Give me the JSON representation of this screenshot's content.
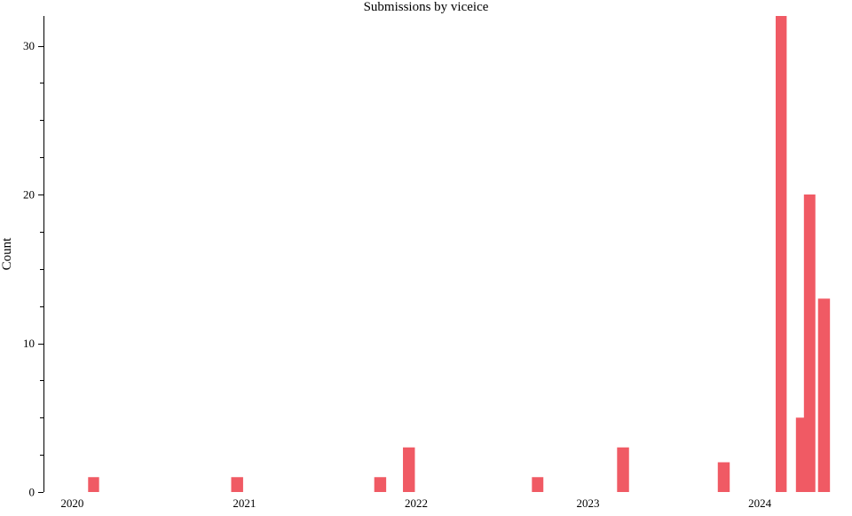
{
  "chart_data": {
    "type": "bar",
    "title": "Submissions by viceice",
    "xlabel": "",
    "ylabel": "Count",
    "x_unit": "date",
    "x_range": [
      "2019-11-01",
      "2024-07-15"
    ],
    "ylim": [
      0,
      32
    ],
    "y_ticks": [
      0,
      10,
      20,
      30
    ],
    "x_ticks": [
      "2020",
      "2021",
      "2022",
      "2023",
      "2024"
    ],
    "grid": false,
    "legend": "none",
    "bar_color": "#f05a64",
    "bars": [
      {
        "start": "2020-02-01",
        "end": "2020-03-01",
        "value": 1
      },
      {
        "start": "2020-12-01",
        "end": "2021-01-01",
        "value": 1
      },
      {
        "start": "2021-10-01",
        "end": "2021-11-01",
        "value": 1
      },
      {
        "start": "2021-12-01",
        "end": "2022-01-01",
        "value": 3
      },
      {
        "start": "2022-09-01",
        "end": "2022-10-01",
        "value": 1
      },
      {
        "start": "2023-03-01",
        "end": "2023-04-01",
        "value": 3
      },
      {
        "start": "2023-10-01",
        "end": "2023-11-01",
        "value": 2
      },
      {
        "start": "2024-02-01",
        "end": "2024-03-01",
        "value": 32
      },
      {
        "start": "2024-03-15",
        "end": "2024-04-15",
        "value": 5
      },
      {
        "start": "2024-04-01",
        "end": "2024-05-01",
        "value": 20
      },
      {
        "start": "2024-05-01",
        "end": "2024-06-01",
        "value": 13
      }
    ]
  }
}
